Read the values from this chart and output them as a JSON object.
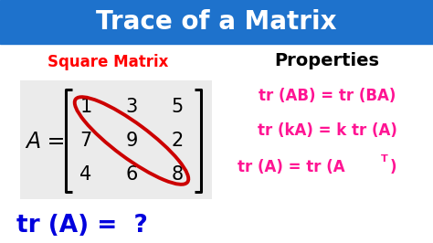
{
  "title": "Trace of a Matrix",
  "title_bg_color": "#1E72CC",
  "title_text_color": "#FFFFFF",
  "bg_color": "#FFFFFF",
  "left_bg_color": "#EBEBEB",
  "square_matrix_label": "Square Matrix",
  "square_matrix_color": "#FF0000",
  "matrix_label": "A =",
  "matrix_label_color": "#000000",
  "matrix": [
    [
      "1",
      "3",
      "5"
    ],
    [
      "7",
      "9",
      "2"
    ],
    [
      "4",
      "6",
      "8"
    ]
  ],
  "matrix_color": "#000000",
  "diagonal_color": "#CC0000",
  "tr_bottom_text": "tr (A) =  ?",
  "tr_bottom_color": "#0000DD",
  "properties_title": "Properties",
  "properties_title_color": "#000000",
  "prop1": "tr (AB) = tr (BA)",
  "prop2": "tr (kA) = k tr (A)",
  "prop3_left": "tr (A) = tr (A",
  "prop3_sup": "T",
  "prop3_right": ")",
  "properties_color": "#FF1493",
  "figw": 4.74,
  "figh": 2.66,
  "dpi": 100
}
